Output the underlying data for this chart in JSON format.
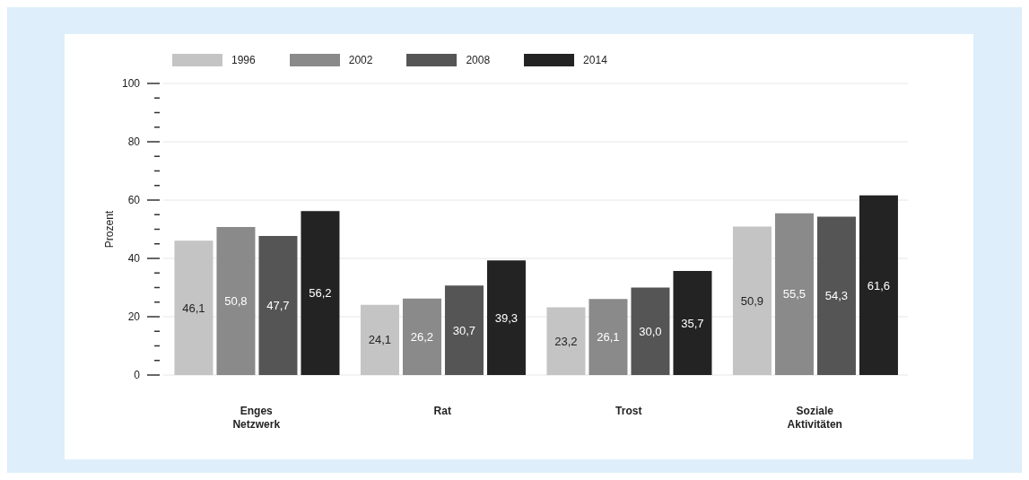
{
  "chart_data": {
    "type": "bar",
    "ylabel": "Prozent",
    "categories": [
      "Enges\nNetzwerk",
      "Rat",
      "Trost",
      "Soziale\nAktivitäten"
    ],
    "series": [
      {
        "name": "1996",
        "color": "#c4c4c4",
        "values": [
          46.1,
          24.1,
          23.2,
          50.9
        ],
        "value_labels": [
          "46,1",
          "24,1",
          "23,2",
          "50,9"
        ]
      },
      {
        "name": "2002",
        "color": "#8a8a8a",
        "values": [
          50.8,
          26.2,
          26.1,
          55.5
        ],
        "value_labels": [
          "50,8",
          "26,2",
          "26,1",
          "55,5"
        ]
      },
      {
        "name": "2008",
        "color": "#555555",
        "values": [
          47.7,
          30.7,
          30.0,
          54.3
        ],
        "value_labels": [
          "47,7",
          "30,7",
          "30,0",
          "54,3"
        ]
      },
      {
        "name": "2014",
        "color": "#232323",
        "values": [
          56.2,
          39.3,
          35.7,
          61.6
        ],
        "value_labels": [
          "56,2",
          "39,3",
          "35,7",
          "61,6"
        ]
      }
    ],
    "ylim": [
      0,
      100
    ],
    "yticks": [
      0,
      {
        "value": 5,
        "label": null
      },
      {
        "value": 10,
        "label": null
      },
      {
        "value": 15,
        "label": null
      },
      20,
      {
        "value": 25,
        "label": null
      },
      {
        "value": 30,
        "label": null
      },
      {
        "value": 35,
        "label": null
      },
      40,
      {
        "value": 45,
        "label": null
      },
      {
        "value": 50,
        "label": null
      },
      {
        "value": 55,
        "label": null
      },
      60,
      {
        "value": 65,
        "label": null
      },
      {
        "value": 70,
        "label": null
      },
      {
        "value": 75,
        "label": null
      },
      80,
      {
        "value": 85,
        "label": null
      },
      {
        "value": 90,
        "label": null
      },
      {
        "value": 95,
        "label": null
      },
      100
    ],
    "grid": "y",
    "legend": "top left"
  }
}
